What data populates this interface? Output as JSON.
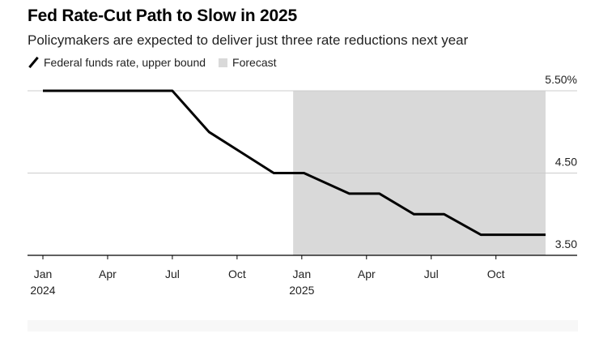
{
  "header": {
    "title": "Fed Rate-Cut Path to Slow in 2025",
    "subtitle": "Policymakers are expected to deliver just three rate reductions next year"
  },
  "legend": {
    "series_label": "Federal funds rate, upper bound",
    "forecast_label": "Forecast"
  },
  "colors": {
    "line": "#000000",
    "forecast": "#d9d9d9",
    "grid": "#cccccc"
  },
  "chart_data": {
    "type": "line",
    "title": "Fed Rate-Cut Path to Slow in 2025",
    "subtitle": "Policymakers are expected to deliver just three rate reductions next year",
    "xlabel": "",
    "ylabel": "",
    "x_range_months": [
      0,
      24
    ],
    "ylim": [
      3.5,
      5.5
    ],
    "y_ticks": [
      {
        "value": 5.5,
        "label": "5.50%"
      },
      {
        "value": 4.5,
        "label": "4.50"
      },
      {
        "value": 3.5,
        "label": "3.50"
      }
    ],
    "x_ticks": [
      {
        "month": 0,
        "label": "Jan",
        "sublabel": "2024"
      },
      {
        "month": 3,
        "label": "Apr",
        "sublabel": ""
      },
      {
        "month": 6,
        "label": "Jul",
        "sublabel": ""
      },
      {
        "month": 9,
        "label": "Oct",
        "sublabel": ""
      },
      {
        "month": 12,
        "label": "Jan",
        "sublabel": "2025"
      },
      {
        "month": 15,
        "label": "Apr",
        "sublabel": ""
      },
      {
        "month": 18,
        "label": "Jul",
        "sublabel": ""
      },
      {
        "month": 21,
        "label": "Oct",
        "sublabel": ""
      }
    ],
    "forecast_range_months": [
      11.6,
      23.3
    ],
    "series": [
      {
        "name": "Federal funds rate, upper bound",
        "points": [
          {
            "x": 0,
            "y": 5.5
          },
          {
            "x": 6.0,
            "y": 5.5
          },
          {
            "x": 7.7,
            "y": 5.0
          },
          {
            "x": 9.2,
            "y": 4.75
          },
          {
            "x": 10.7,
            "y": 4.5
          },
          {
            "x": 12.1,
            "y": 4.5
          },
          {
            "x": 14.2,
            "y": 4.25
          },
          {
            "x": 15.6,
            "y": 4.25
          },
          {
            "x": 17.2,
            "y": 4.0
          },
          {
            "x": 18.6,
            "y": 4.0
          },
          {
            "x": 20.3,
            "y": 3.75
          },
          {
            "x": 23.3,
            "y": 3.75
          }
        ]
      }
    ]
  }
}
